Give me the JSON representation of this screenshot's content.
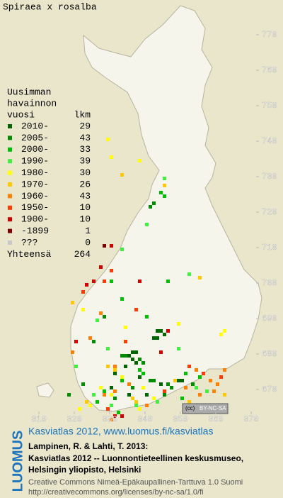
{
  "title": "Spiraea x rosalba",
  "map": {
    "xlim": [
      310,
      370
    ],
    "ylim": [
      670,
      770
    ],
    "xticks": [
      310,
      320,
      330,
      340,
      350,
      360,
      370
    ],
    "yticks": [
      670,
      680,
      690,
      700,
      710,
      720,
      730,
      740,
      750,
      760,
      770
    ]
  },
  "legend": {
    "title_lines": [
      "Uusimman",
      "havainnon",
      "vuosi"
    ],
    "count_header": "lkm",
    "items": [
      {
        "label": "2010-",
        "count": 29,
        "color": "#006400",
        "squares": [
          [
            343,
            686
          ],
          [
            344,
            686
          ],
          [
            345,
            685
          ],
          [
            342,
            684
          ],
          [
            343,
            684
          ],
          [
            336,
            680
          ],
          [
            337,
            680
          ],
          [
            335,
            679
          ],
          [
            336,
            678
          ],
          [
            337,
            677
          ],
          [
            334,
            676
          ],
          [
            331,
            674
          ],
          [
            349,
            672
          ],
          [
            350,
            672
          ],
          [
            344,
            671
          ],
          [
            330,
            670
          ],
          [
            335,
            668
          ],
          [
            340,
            668
          ],
          [
            338,
            673
          ]
        ]
      },
      {
        "label": "2005-",
        "count": 43,
        "color": "#008c00",
        "squares": [
          [
            333,
            679
          ],
          [
            334,
            679
          ],
          [
            338,
            678
          ],
          [
            339,
            677
          ],
          [
            322,
            671
          ],
          [
            341,
            672
          ],
          [
            342,
            672
          ],
          [
            346,
            671
          ],
          [
            347,
            670
          ],
          [
            353,
            671
          ],
          [
            318,
            668
          ],
          [
            331,
            667
          ],
          [
            336,
            670
          ],
          [
            345,
            668
          ],
          [
            341,
            721
          ],
          [
            342,
            722
          ],
          [
            328,
            690
          ],
          [
            325,
            683
          ]
        ]
      },
      {
        "label": "2000-",
        "count": 33,
        "color": "#00c000",
        "squares": [
          [
            344,
            725
          ],
          [
            345,
            724
          ],
          [
            330,
            700
          ],
          [
            333,
            695
          ],
          [
            346,
            700
          ],
          [
            340,
            690
          ],
          [
            338,
            675
          ],
          [
            339,
            674
          ],
          [
            333,
            672
          ],
          [
            328,
            669
          ],
          [
            326,
            666
          ],
          [
            350,
            667
          ],
          [
            351,
            674
          ],
          [
            355,
            673
          ],
          [
            332,
            663
          ]
        ]
      },
      {
        "label": "1990-",
        "count": 39,
        "color": "#40f040",
        "squares": [
          [
            345,
            729
          ],
          [
            340,
            716
          ],
          [
            333,
            709
          ],
          [
            352,
            702
          ],
          [
            349,
            681
          ],
          [
            329,
            681
          ],
          [
            320,
            676
          ],
          [
            325,
            668
          ],
          [
            330,
            665
          ],
          [
            337,
            665
          ],
          [
            343,
            666
          ],
          [
            354,
            670
          ],
          [
            357,
            669
          ],
          [
            326,
            689
          ]
        ]
      },
      {
        "label": "1980-",
        "count": 30,
        "color": "#ffff00",
        "squares": [
          [
            329,
            740
          ],
          [
            338,
            734
          ],
          [
            330,
            735
          ],
          [
            349,
            688
          ],
          [
            322,
            692
          ],
          [
            334,
            687
          ],
          [
            330,
            668
          ],
          [
            327,
            670
          ],
          [
            333,
            673
          ],
          [
            338,
            664
          ],
          [
            321,
            664
          ],
          [
            361,
            685
          ],
          [
            362,
            686
          ],
          [
            339,
            670
          ],
          [
            342,
            667
          ],
          [
            324,
            665
          ]
        ]
      },
      {
        "label": "1970-",
        "count": 26,
        "color": "#ffc800",
        "squares": [
          [
            333,
            730
          ],
          [
            345,
            727
          ],
          [
            355,
            701
          ],
          [
            319,
            694
          ],
          [
            331,
            675
          ],
          [
            329,
            676
          ],
          [
            336,
            667
          ],
          [
            337,
            666
          ],
          [
            323,
            666
          ],
          [
            348,
            672
          ],
          [
            352,
            666
          ],
          [
            362,
            668
          ]
        ]
      },
      {
        "label": "1960-",
        "count": 43,
        "color": "#ff8000",
        "squares": [
          [
            331,
            676
          ],
          [
            328,
            668
          ],
          [
            331,
            669
          ],
          [
            335,
            671
          ],
          [
            340,
            665
          ],
          [
            351,
            670
          ],
          [
            354,
            675
          ],
          [
            355,
            668
          ],
          [
            358,
            672
          ],
          [
            360,
            671
          ],
          [
            359,
            669
          ],
          [
            362,
            675
          ],
          [
            327,
            691
          ],
          [
            324,
            684
          ],
          [
            330,
            661
          ],
          [
            319,
            680
          ]
        ]
      },
      {
        "label": "1950-",
        "count": 10,
        "color": "#ff3c00",
        "squares": [
          [
            328,
            700
          ],
          [
            330,
            703
          ],
          [
            337,
            692
          ],
          [
            352,
            676
          ],
          [
            356,
            674
          ],
          [
            345,
            669
          ],
          [
            329,
            664
          ],
          [
            361,
            673
          ],
          [
            334,
            683
          ],
          [
            322,
            697
          ]
        ]
      },
      {
        "label": "1900-",
        "count": 10,
        "color": "#d00000",
        "squares": [
          [
            323,
            699
          ],
          [
            330,
            710
          ],
          [
            325,
            700
          ],
          [
            346,
            686
          ],
          [
            333,
            662
          ],
          [
            320,
            683
          ],
          [
            331,
            662
          ],
          [
            338,
            700
          ],
          [
            344,
            680
          ],
          [
            327,
            704
          ]
        ]
      },
      {
        "label": "-1899",
        "count": 1,
        "color": "#800000",
        "squares": [
          [
            328,
            710
          ]
        ]
      },
      {
        "label": "???",
        "count": 0,
        "color": "#c8c8c8",
        "squares": []
      }
    ],
    "total_label": "Yhteensä",
    "total": 264
  },
  "license_badge": "BY-NC-SA",
  "credits": {
    "link": "Kasviatlas 2012, www.luomus.fi/kasviatlas",
    "logo": "LUOMUS",
    "citation": [
      "Lampinen, R. & Lahti, T. 2013:",
      "Kasviatlas 2012 -- Luonnontieteellinen keskusmuseo,",
      "Helsingin yliopisto, Helsinki"
    ],
    "license": [
      "Creative Commons Nimeä-Epäkaupallinen-Tarttuva 1.0 Suomi",
      "http://creativecommons.org/licenses/by-nc-sa/1.0/fi"
    ]
  }
}
